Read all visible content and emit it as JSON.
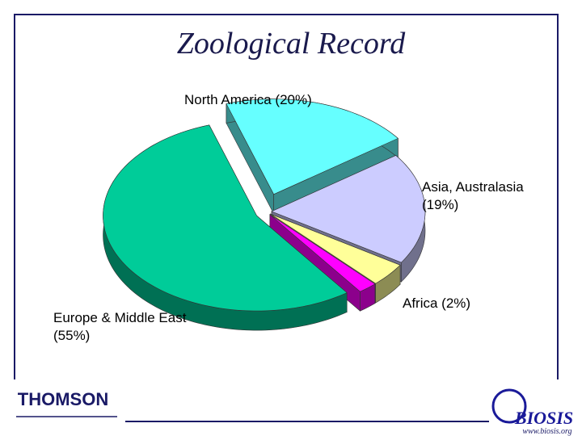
{
  "chart_data": {
    "type": "pie3d",
    "title": "Zoological Record",
    "categories": [
      "North America (20%)",
      "Asia, Australasia (19%)",
      null,
      "Africa (2%)",
      "Europe & Middle East (55%)"
    ],
    "values": [
      20,
      19,
      4,
      2,
      55
    ],
    "colors": [
      "#66ffff",
      "#ccccff",
      "#ffff99",
      "#ff00ff",
      "#00cc99"
    ]
  },
  "footer": {
    "left_logo": "THOMSON",
    "right_logo": "BIOSIS",
    "right_url": "www.biosis.org"
  }
}
